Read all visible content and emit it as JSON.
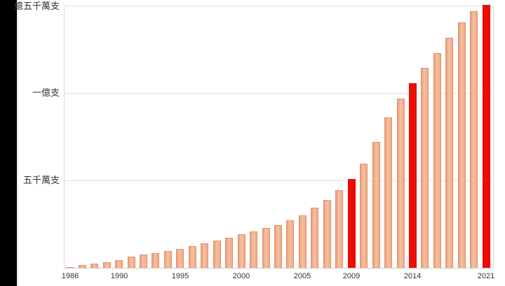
{
  "left_strip": {
    "color": "#000000"
  },
  "chart_data": {
    "type": "bar",
    "unit": "支",
    "values_unit": "millions of 支",
    "categories": [
      1986,
      1987,
      1988,
      1989,
      1990,
      1991,
      1992,
      1993,
      1994,
      1995,
      1996,
      1997,
      1998,
      1999,
      2000,
      2001,
      2002,
      2003,
      2004,
      2005,
      2006,
      2007,
      2008,
      2009,
      2010,
      2011,
      2012,
      2013,
      2014,
      2015,
      2016,
      2017,
      2018,
      2019,
      2021
    ],
    "values": [
      0.4,
      1.5,
      2.3,
      3.3,
      4.5,
      6.3,
      7.5,
      8.5,
      9.6,
      10.9,
      12.3,
      14.0,
      15.6,
      17.2,
      19.2,
      20.9,
      22.7,
      24.5,
      27.2,
      29.9,
      34.5,
      38.9,
      44.5,
      50.8,
      59.5,
      72.1,
      85.9,
      96.8,
      105.7,
      114.5,
      122.8,
      131.5,
      140.3,
      146.6,
      150.5
    ],
    "highlighted_categories": [
      2009,
      2014,
      2021
    ],
    "y_ticks": [
      {
        "value": 150,
        "label": "億五千萬支"
      },
      {
        "value": 100,
        "label": "一億支"
      },
      {
        "value": 50,
        "label": "五千萬支"
      }
    ],
    "x_tick_labels": [
      "1986",
      "1990",
      "1995",
      "2000",
      "2005",
      "2009",
      "2014",
      "2021"
    ],
    "ylim": [
      0,
      150
    ],
    "grid": true,
    "legend": false,
    "colors": {
      "bar_fill": "#f3b292",
      "bar_edge": "#e2926c",
      "highlight": "#ee0c00",
      "gridline": "#e2e2e2",
      "axis_line": "#cccccc",
      "text": "#333333"
    }
  }
}
